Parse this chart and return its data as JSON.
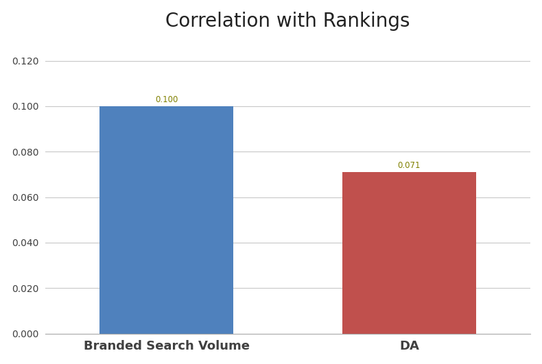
{
  "title": "Correlation with Rankings",
  "categories": [
    "Branded Search Volume",
    "DA"
  ],
  "values": [
    0.1,
    0.071
  ],
  "bar_colors": [
    "#4F81BD",
    "#C0504D"
  ],
  "bar_labels": [
    "0.100",
    "0.071"
  ],
  "bar_label_color": "#808000",
  "ylim": [
    0,
    0.13
  ],
  "yticks": [
    0.0,
    0.02,
    0.04,
    0.06,
    0.08,
    0.1,
    0.12
  ],
  "title_fontsize": 20,
  "xlabel_fontsize": 13,
  "bar_label_fontsize": 8.5,
  "background_color": "#ffffff",
  "grid_color": "#c8c8c8",
  "tick_label_color": "#404040",
  "bar_width": 0.55
}
